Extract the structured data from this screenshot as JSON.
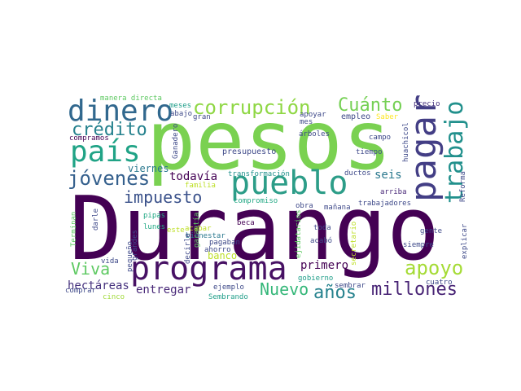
{
  "words": [
    {
      "text": "Durango",
      "color": "#440154"
    },
    {
      "text": "pesos",
      "color": "#7ad151"
    },
    {
      "text": "programa",
      "color": "#471164"
    },
    {
      "text": "pueblo",
      "color": "#2c9d88"
    },
    {
      "text": "pagar",
      "color": "#433e85"
    },
    {
      "text": "trabajo",
      "color": "#21908c"
    },
    {
      "text": "dinero",
      "color": "#31688e"
    },
    {
      "text": "país",
      "color": "#20a386"
    },
    {
      "text": "corrupción",
      "color": "#8fd744"
    },
    {
      "text": "Cuánto",
      "color": "#75d054"
    },
    {
      "text": "crédito",
      "color": "#26828e"
    },
    {
      "text": "jóvenes",
      "color": "#35608d"
    },
    {
      "text": "impuesto",
      "color": "#3b528b"
    },
    {
      "text": "apoyo",
      "color": "#a5db36"
    },
    {
      "text": "millones",
      "color": "#482475"
    },
    {
      "text": "años",
      "color": "#26828e"
    },
    {
      "text": "Nuevo",
      "color": "#35b779"
    },
    {
      "text": "Viva",
      "color": "#5ec962"
    },
    {
      "text": "hectáreas",
      "color": "#46327e"
    },
    {
      "text": "entregar",
      "color": "#482878"
    },
    {
      "text": "primero",
      "color": "#440154"
    },
    {
      "text": "todavía",
      "color": "#440154"
    },
    {
      "text": "seis",
      "color": "#2a788e"
    },
    {
      "text": "viernes",
      "color": "#2a788e"
    },
    {
      "text": "banco",
      "color": "#bddf26"
    },
    {
      "text": "precio",
      "color": "#46327e"
    },
    {
      "text": "meses",
      "color": "#1f9e89"
    },
    {
      "text": "compramos",
      "color": "#440154"
    },
    {
      "text": "presupuesto",
      "color": "#3e4989"
    },
    {
      "text": "empleo",
      "color": "#3e4989"
    },
    {
      "text": "Saber",
      "color": "#fde725"
    },
    {
      "text": "árboles",
      "color": "#3e4989"
    },
    {
      "text": "transformación",
      "color": "#21918c"
    },
    {
      "text": "ductos",
      "color": "#3e4989"
    },
    {
      "text": "arriba",
      "color": "#482878"
    },
    {
      "text": "trabajadores",
      "color": "#3e4989"
    },
    {
      "text": "mañana",
      "color": "#3e4989"
    },
    {
      "text": "compromiso",
      "color": "#22a884"
    },
    {
      "text": "obra",
      "color": "#3e4989"
    },
    {
      "text": "beca",
      "color": "#440154"
    },
    {
      "text": "acabar",
      "color": "#bddf26"
    },
    {
      "text": "bienestar",
      "color": "#2a788e"
    },
    {
      "text": "pagaban",
      "color": "#3e4989"
    },
    {
      "text": "ahorro",
      "color": "#3e4989"
    },
    {
      "text": "gobierno",
      "color": "#1f9e89"
    },
    {
      "text": "sembrar",
      "color": "#3e4989"
    },
    {
      "text": "cuatro",
      "color": "#3e4989"
    },
    {
      "text": "ejemplo",
      "color": "#3e4989"
    },
    {
      "text": "Sembrando",
      "color": "#1f9e89"
    },
    {
      "text": "vida",
      "color": "#3e4989"
    },
    {
      "text": "comprar",
      "color": "#3e4989"
    },
    {
      "text": "cinco",
      "color": "#a0da39"
    },
    {
      "text": "pipas",
      "color": "#22a884"
    },
    {
      "text": "lunes",
      "color": "#22a884"
    },
    {
      "text": "este",
      "color": "#bddf26"
    },
    {
      "text": "toda",
      "color": "#3e4989"
    },
    {
      "text": "acabó",
      "color": "#3e4989"
    },
    {
      "text": "siempre",
      "color": "#3e4989"
    },
    {
      "text": "gente",
      "color": "#3e4989"
    },
    {
      "text": "campo",
      "color": "#3e4989"
    },
    {
      "text": "tiempo",
      "color": "#3e4989"
    },
    {
      "text": "familia",
      "color": "#bddf26"
    },
    {
      "text": "gran",
      "color": "#3e4989"
    },
    {
      "text": "abajo",
      "color": "#3e4989"
    },
    {
      "text": "apoyar",
      "color": "#3e4989"
    },
    {
      "text": "mes",
      "color": "#3e4989"
    },
    {
      "text": "manera directa",
      "color": "#5ec962"
    },
    {
      "text": "Ganadero",
      "color": "#3e4989"
    },
    {
      "text": "huachicol",
      "color": "#3e4989"
    },
    {
      "text": "Reforma",
      "color": "#3e4989"
    },
    {
      "text": "explicar",
      "color": "#3e4989"
    },
    {
      "text": "Terminan",
      "color": "#5ec962"
    },
    {
      "text": "darle",
      "color": "#3e4989"
    },
    {
      "text": "pequeño",
      "color": "#3e4989"
    },
    {
      "text": "grandes",
      "color": "#3e4989"
    },
    {
      "text": "decirle",
      "color": "#3e4989"
    },
    {
      "text": "garantía",
      "color": "#5ec962"
    },
    {
      "text": "ejidatarios",
      "color": "#5ec962"
    },
    {
      "text": "secretario",
      "color": "#bddf26"
    }
  ]
}
